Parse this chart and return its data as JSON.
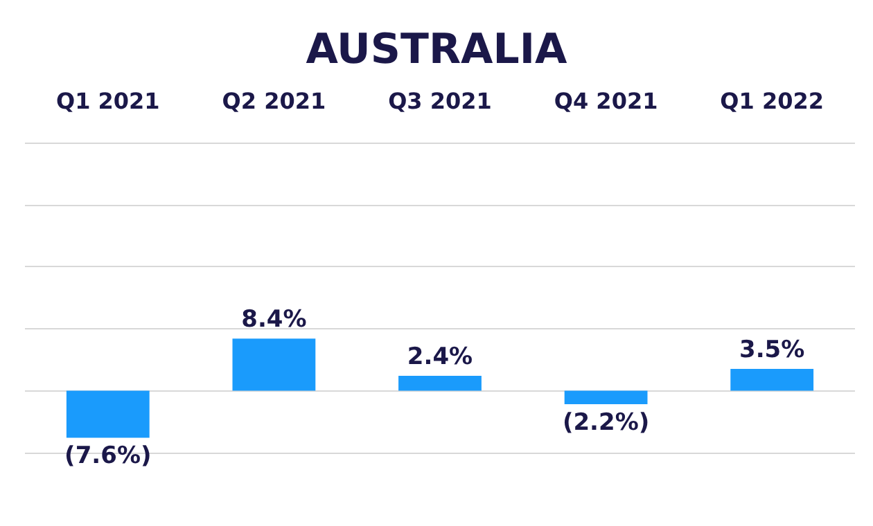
{
  "chart_data": {
    "type": "bar",
    "title": "AUSTRALIA",
    "categories": [
      "Q1 2021",
      "Q2 2021",
      "Q3 2021",
      "Q4 2021",
      "Q1 2022"
    ],
    "values": [
      -7.6,
      8.4,
      2.4,
      -2.2,
      3.5
    ],
    "value_labels": [
      "(7.6%)",
      "8.4%",
      "2.4%",
      "(2.2%)",
      "3.5%"
    ],
    "color": "#1a9bfc",
    "ylim": [
      -10,
      40
    ],
    "yticks": [
      {
        "value": -10,
        "label": null
      },
      {
        "value": 0,
        "label": null
      },
      {
        "value": 10,
        "label": null
      },
      {
        "value": 20,
        "label": null
      },
      {
        "value": 30,
        "label": null
      },
      {
        "value": 40,
        "label": null
      }
    ],
    "tick_labels": "x",
    "grid": "y"
  }
}
